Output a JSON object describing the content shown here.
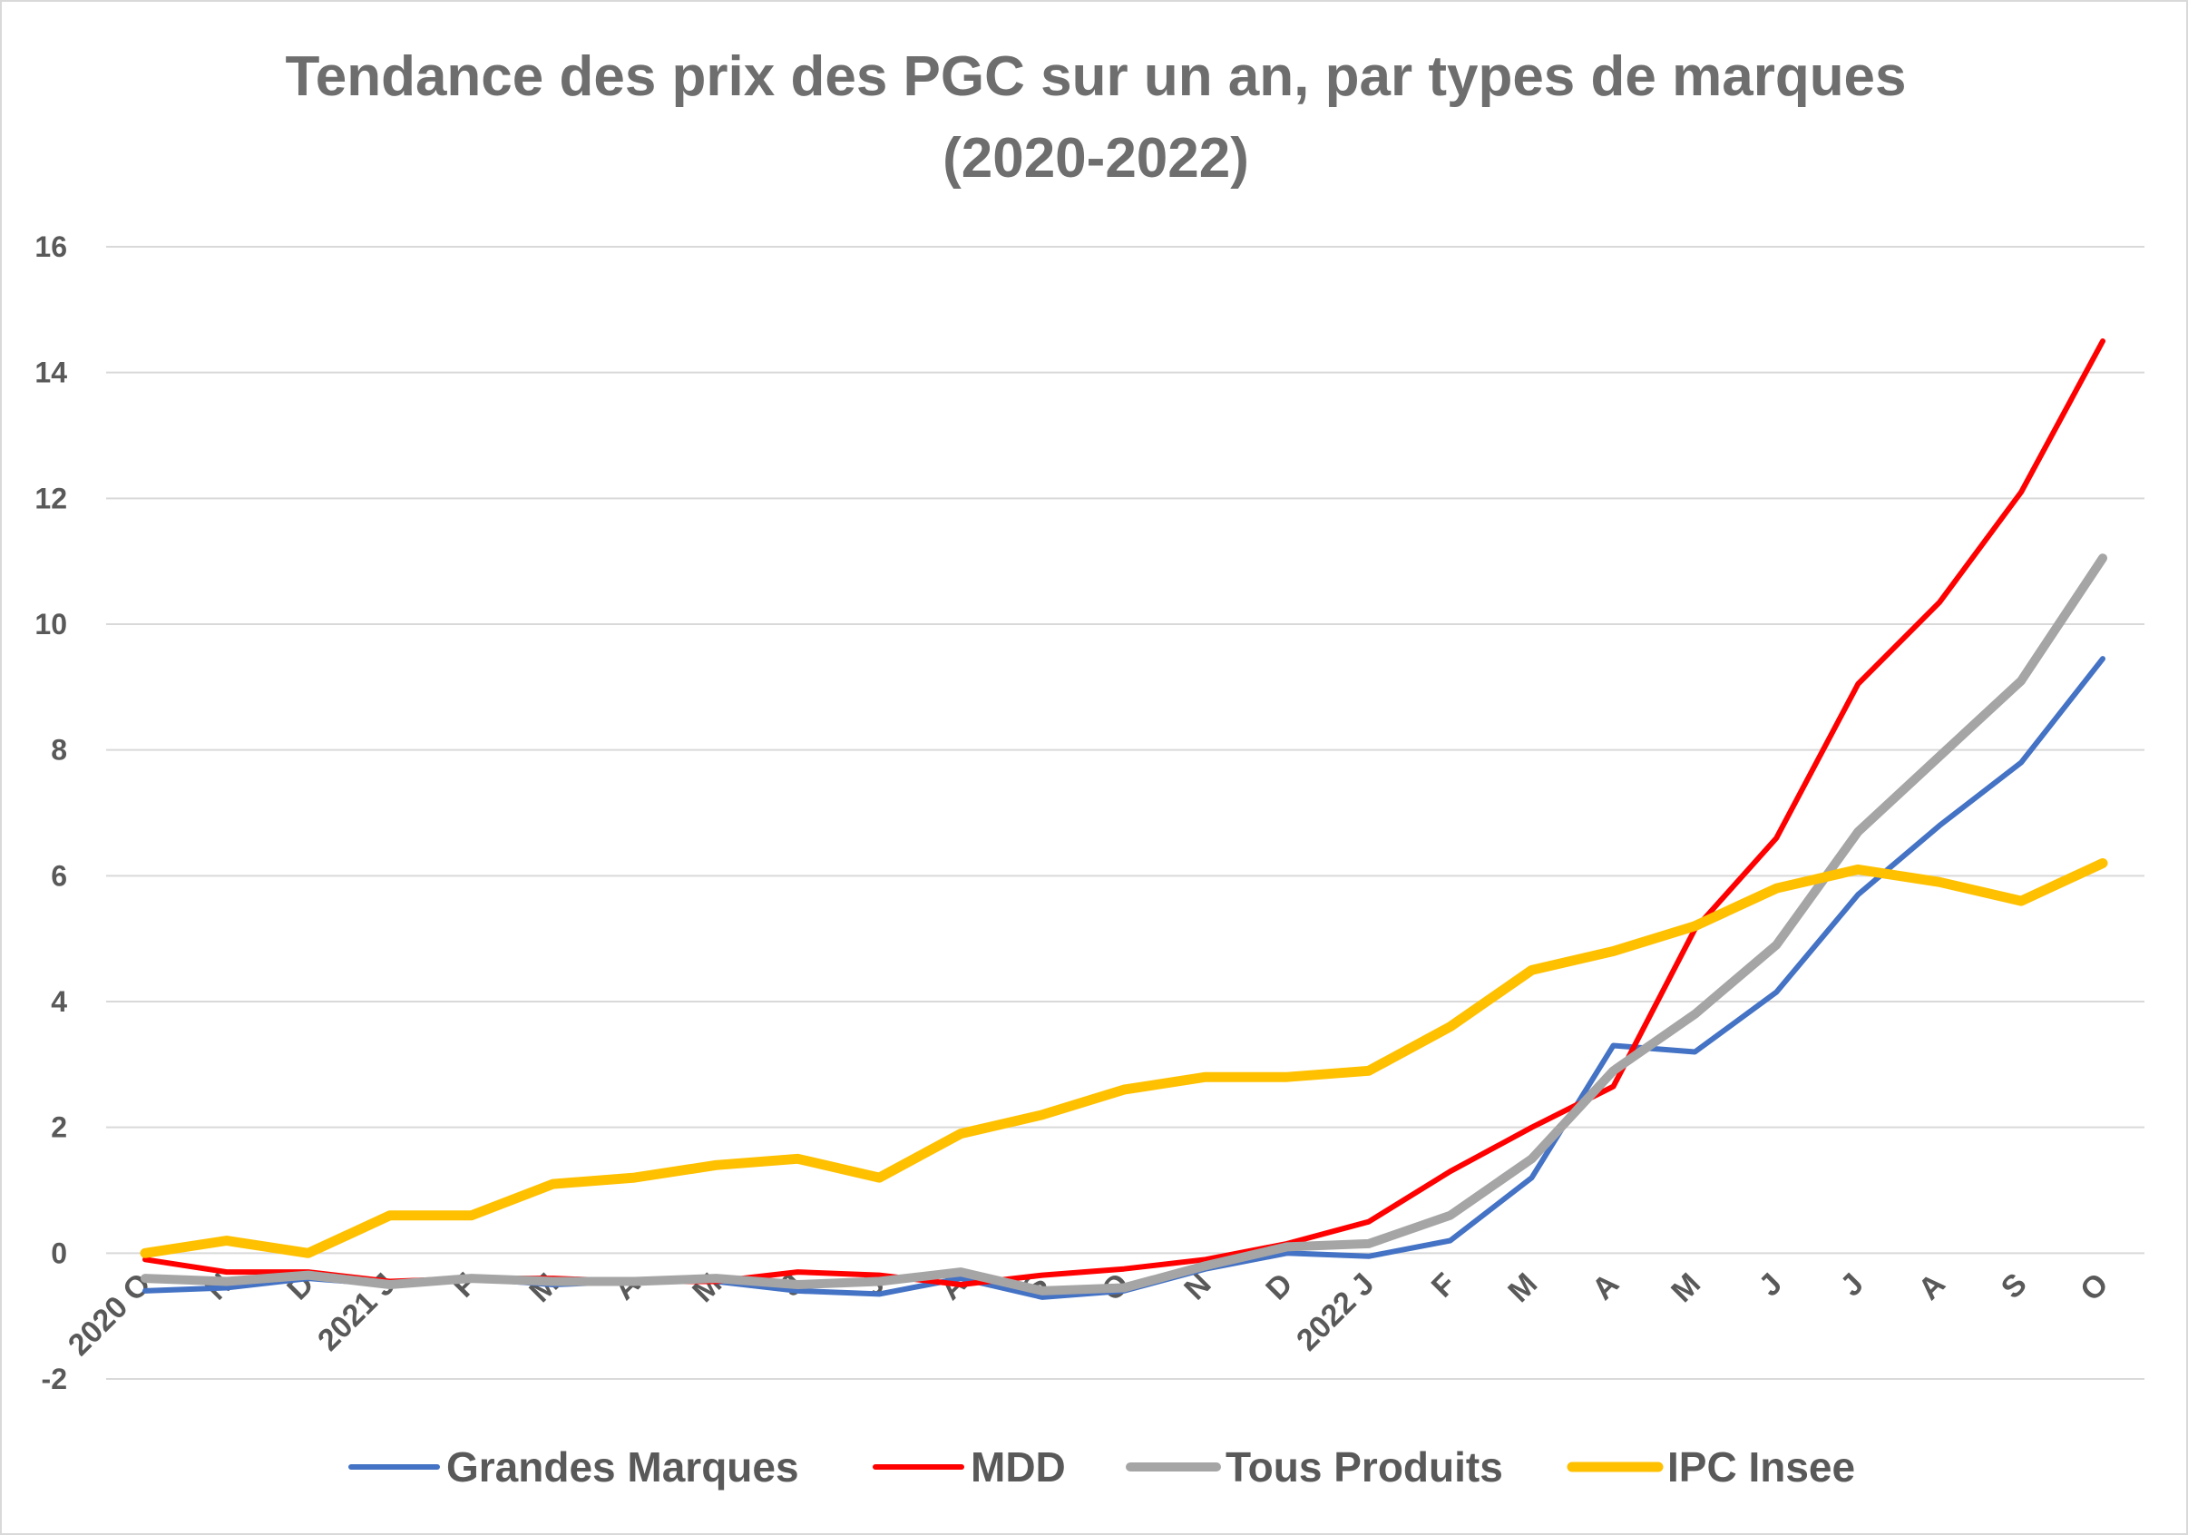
{
  "chart_data": {
    "type": "line",
    "title_line1": "Tendance des prix des PGC sur un an, par types de marques",
    "title_line2": "(2020-2022)",
    "xlabel": "",
    "ylabel": "",
    "ylim": [
      -2,
      16
    ],
    "y_ticks": [
      "-2",
      "0",
      "2",
      "4",
      "6",
      "8",
      "10",
      "12",
      "14",
      "16"
    ],
    "categories": [
      "2020 O",
      "N",
      "D",
      "2021 J",
      "F",
      "M",
      "A",
      "M",
      "J",
      "J",
      "A",
      "S",
      "O",
      "N",
      "D",
      "2022 J",
      "F",
      "M",
      "A",
      "M",
      "J",
      "J",
      "A",
      "S",
      "O"
    ],
    "grid": true,
    "legend_position": "bottom",
    "series": [
      {
        "name": "Grandes Marques",
        "color": "#4472c4",
        "values": [
          -0.6,
          -0.55,
          -0.4,
          -0.5,
          -0.4,
          -0.5,
          -0.45,
          -0.45,
          -0.6,
          -0.65,
          -0.4,
          -0.7,
          -0.6,
          -0.25,
          0.0,
          -0.05,
          0.2,
          1.2,
          3.3,
          3.2,
          4.15,
          5.7,
          6.8,
          7.8,
          9.45
        ]
      },
      {
        "name": "MDD",
        "color": "#ff0000",
        "values": [
          -0.1,
          -0.3,
          -0.3,
          -0.45,
          -0.4,
          -0.4,
          -0.45,
          -0.45,
          -0.3,
          -0.35,
          -0.5,
          -0.35,
          -0.25,
          -0.1,
          0.15,
          0.5,
          1.3,
          2.0,
          2.65,
          5.15,
          6.6,
          9.05,
          10.35,
          12.1,
          14.5
        ]
      },
      {
        "name": "Tous Produits",
        "color": "#a5a5a5",
        "values": [
          -0.4,
          -0.45,
          -0.35,
          -0.5,
          -0.4,
          -0.45,
          -0.45,
          -0.4,
          -0.5,
          -0.45,
          -0.3,
          -0.6,
          -0.55,
          -0.2,
          0.1,
          0.15,
          0.6,
          1.5,
          2.9,
          3.8,
          4.9,
          6.7,
          7.9,
          9.1,
          11.05
        ]
      },
      {
        "name": "IPC Insee",
        "color": "#ffc000",
        "values": [
          0.0,
          0.2,
          0.0,
          0.6,
          0.6,
          1.1,
          1.2,
          1.4,
          1.5,
          1.2,
          1.9,
          2.2,
          2.6,
          2.8,
          2.8,
          2.9,
          3.6,
          4.5,
          4.8,
          5.2,
          5.8,
          6.1,
          5.9,
          5.6,
          6.2
        ]
      }
    ]
  }
}
